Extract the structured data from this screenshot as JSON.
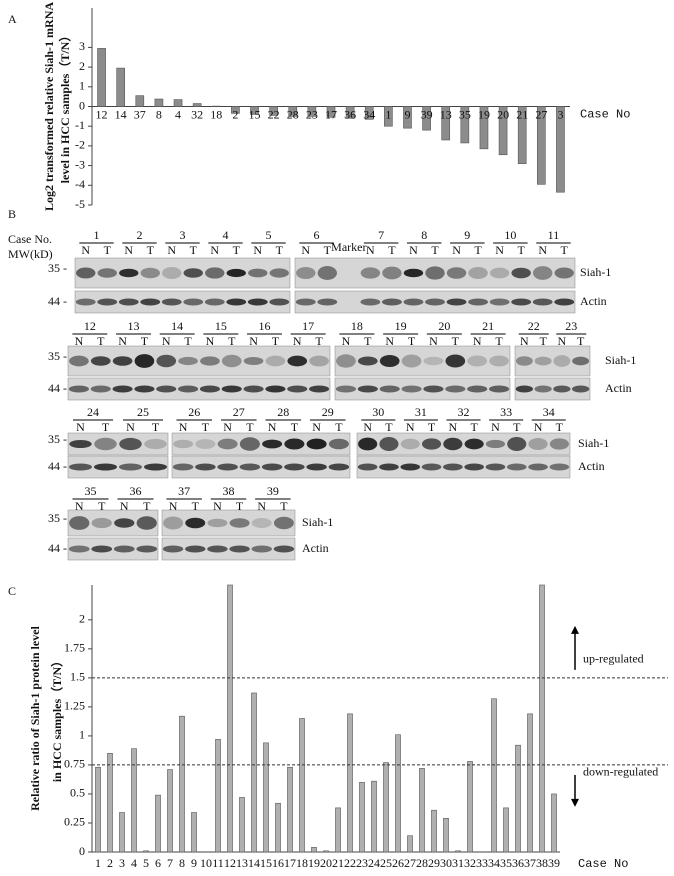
{
  "chart_data": [
    {
      "type": "bar",
      "label": "A",
      "ylabel": [
        "Log2 transformed relative Siah-1 mRNA",
        "level  in HCC samples（T/N）"
      ],
      "xlabel": "Case No",
      "categories": [
        "12",
        "14",
        "37",
        "8",
        "4",
        "32",
        "18",
        "2",
        "15",
        "22",
        "28",
        "23",
        "17",
        "36",
        "34",
        "1",
        "9",
        "39",
        "13",
        "35",
        "19",
        "20",
        "21",
        "27",
        "3"
      ],
      "values": [
        2.95,
        1.95,
        0.55,
        0.38,
        0.35,
        0.15,
        0.02,
        -0.35,
        -0.4,
        -0.45,
        -0.5,
        -0.5,
        -0.55,
        -0.6,
        -0.65,
        -1.0,
        -1.1,
        -1.2,
        -1.7,
        -1.85,
        -2.15,
        -2.45,
        -2.9,
        -3.95,
        -4.35
      ],
      "color": "#8c8c8c",
      "ylim": [
        -5,
        5
      ],
      "yticks": [
        -5,
        -4,
        -3,
        -2,
        -1,
        0,
        1,
        2,
        3
      ]
    },
    {
      "type": "bar",
      "label": "C",
      "ylabel": [
        "Relative  ratio of Siah-1 protein level",
        "in HCC samples（T/N）"
      ],
      "xlabel": "Case No",
      "categories": [
        "1",
        "2",
        "3",
        "4",
        "5",
        "6",
        "7",
        "8",
        "9",
        "10",
        "11",
        "12",
        "13",
        "14",
        "15",
        "16",
        "17",
        "18",
        "19",
        "20",
        "21",
        "22",
        "23",
        "24",
        "25",
        "26",
        "27",
        "28",
        "29",
        "30",
        "31",
        "32",
        "33",
        "34",
        "35",
        "36",
        "37",
        "38",
        "39"
      ],
      "values": [
        0.73,
        0.85,
        0.34,
        0.89,
        0.01,
        0.49,
        0.71,
        1.17,
        0.34,
        0,
        0.97,
        2.3,
        0.47,
        1.37,
        0.94,
        0.42,
        0.73,
        1.15,
        0.04,
        0.01,
        0.38,
        1.19,
        0.6,
        0.61,
        0.77,
        1.01,
        0.14,
        0.72,
        0.36,
        0.29,
        0.01,
        0.78,
        0,
        1.32,
        0.38,
        0.92,
        1.19,
        2.3,
        0.5
      ],
      "color": "#b0b0b0",
      "ylim": [
        0,
        2.3
      ],
      "yticks": [
        0,
        0.25,
        0.5,
        0.75,
        1,
        1.25,
        1.5,
        1.75,
        2
      ],
      "ref_lines": [
        {
          "value": 1.5,
          "label": "up-regulated"
        },
        {
          "value": 0.75,
          "label": "down-regulated"
        }
      ]
    }
  ],
  "panel_b": {
    "label": "B",
    "header": "Case No.",
    "mw_label": "MW(kD)",
    "marker_label": "Marker",
    "mw_marks": [
      "35 -",
      "44 -"
    ],
    "lane_labels": [
      "N",
      "T"
    ],
    "target": "Siah-1",
    "control": "Actin",
    "rows": [
      {
        "cases": [
          [
            "1",
            "2",
            "3",
            "4",
            "5"
          ],
          [
            "6",
            "7",
            "8",
            "9",
            "10",
            "11"
          ]
        ]
      },
      {
        "cases": [
          [
            "12",
            "13",
            "14",
            "15",
            "16",
            "17"
          ],
          [
            "18",
            "19",
            "20",
            "21"
          ],
          [
            "22",
            "23"
          ]
        ]
      },
      {
        "cases": [
          [
            "24",
            "25"
          ],
          [
            "26",
            "27",
            "28",
            "29"
          ],
          [
            "30",
            "31",
            "32",
            "33",
            "34"
          ]
        ]
      },
      {
        "cases": [
          [
            "35",
            "36"
          ],
          [
            "37",
            "38",
            "39"
          ]
        ]
      }
    ]
  }
}
